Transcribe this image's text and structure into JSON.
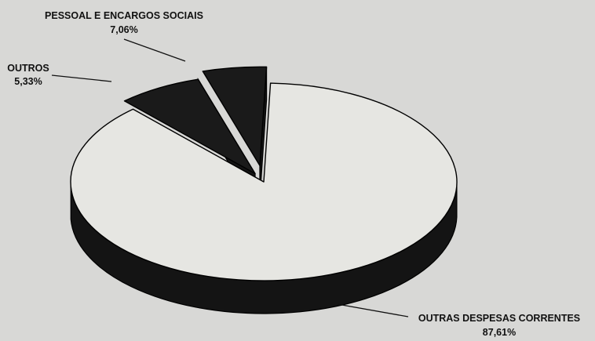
{
  "chart_data": {
    "type": "pie",
    "title": "",
    "slices": [
      {
        "label": "OUTRAS DESPESAS CORRENTES",
        "value": 87.61,
        "display": "87,61%"
      },
      {
        "label": "PESSOAL E ENCARGOS SOCIAIS",
        "value": 7.06,
        "display": "7,06%"
      },
      {
        "label": "OUTROS",
        "value": 5.33,
        "display": "5,33%"
      }
    ],
    "colors": {
      "top_main": "#e6e6e2",
      "top_small": "#1a1a1a",
      "side": "#141414",
      "outline": "#000000"
    },
    "exploded": [
      "PESSOAL E ENCARGOS SOCIAIS",
      "OUTROS"
    ],
    "three_d": true
  }
}
